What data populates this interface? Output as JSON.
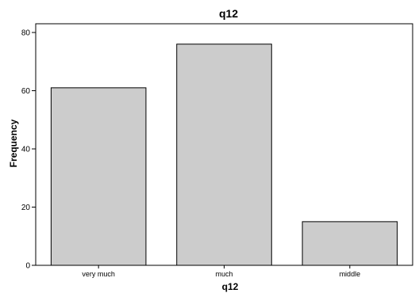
{
  "chart_data": {
    "type": "bar",
    "title": "q12",
    "xlabel": "q12",
    "ylabel": "Frequency",
    "categories": [
      "very much",
      "much",
      "middle"
    ],
    "values": [
      61,
      76,
      15
    ],
    "ylim": [
      0,
      83
    ],
    "yticks": [
      0,
      20,
      40,
      60,
      80
    ],
    "grid": false,
    "legend": "none",
    "colors": {
      "bar_fill": "#cccccc",
      "bar_stroke": "#000000",
      "axis": "#000000",
      "background": "#ffffff"
    }
  }
}
